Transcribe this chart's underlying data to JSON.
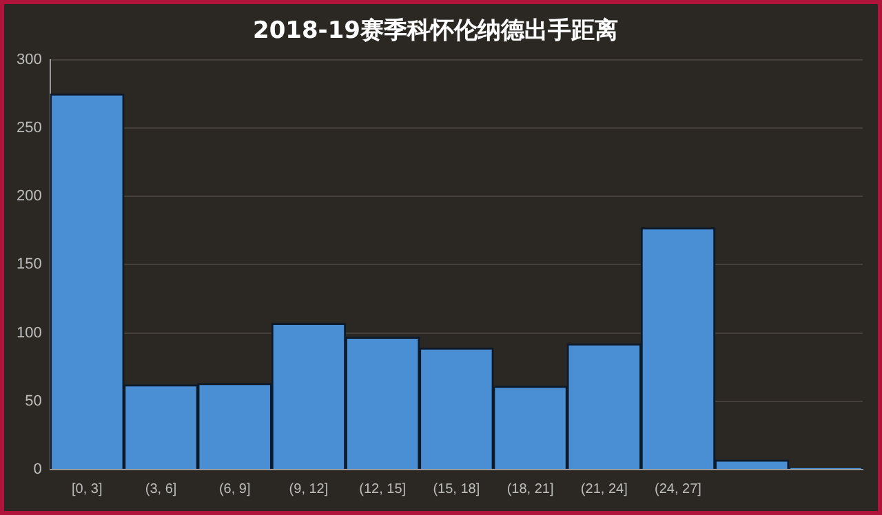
{
  "chart_data": {
    "type": "bar",
    "title": "2018-19赛季科怀伦纳德出手距离",
    "categories": [
      "[0, 3]",
      "(3, 6]",
      "(6, 9]",
      "(9, 12]",
      "(12, 15]",
      "(15, 18]",
      "(18, 21]",
      "(21, 24]",
      "(24, 27]",
      null,
      null
    ],
    "values": [
      275,
      62,
      63,
      107,
      97,
      89,
      61,
      92,
      177,
      7,
      1
    ],
    "color": "#4a8fd4",
    "ylim": [
      0,
      300
    ],
    "yticks": [
      0,
      50,
      100,
      150,
      200,
      250,
      300
    ],
    "grid": "y",
    "legend": false
  }
}
